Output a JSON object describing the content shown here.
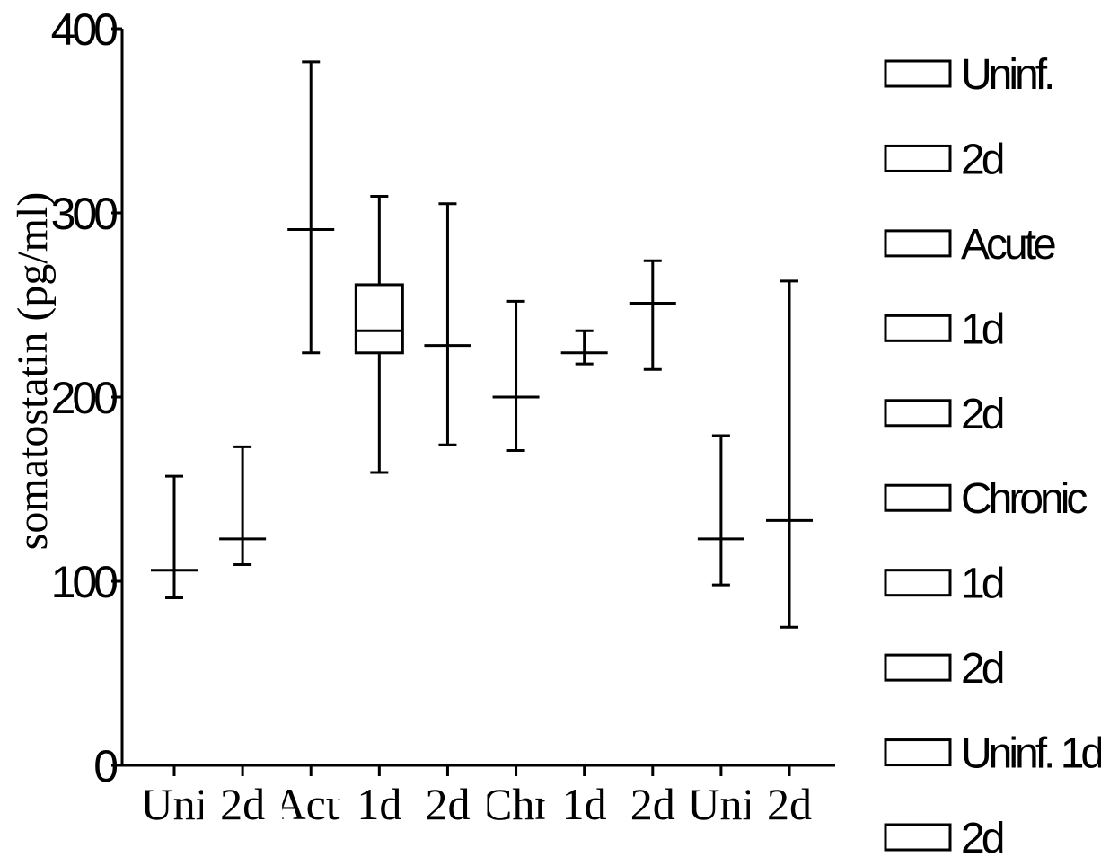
{
  "chart_data": {
    "type": "box",
    "ylabel": "somatostatin (pg/ml)",
    "ylim": [
      0,
      400
    ],
    "yticks": [
      0,
      100,
      200,
      300,
      400
    ],
    "categories": [
      "Uni",
      "2d",
      "Acu",
      "1d",
      "2d",
      "Chr",
      "1d",
      "2d",
      "Uni",
      "2d"
    ],
    "boxes": [
      {
        "min": 91,
        "q1": 106,
        "median": 106,
        "q3": 106,
        "max": 157
      },
      {
        "min": 109,
        "q1": 123,
        "median": 123,
        "q3": 123,
        "max": 173
      },
      {
        "min": 224,
        "q1": 291,
        "median": 291,
        "q3": 291,
        "max": 382
      },
      {
        "min": 159,
        "q1": 224,
        "median": 236,
        "q3": 261,
        "max": 309
      },
      {
        "min": 174,
        "q1": 228,
        "median": 228,
        "q3": 228,
        "max": 305
      },
      {
        "min": 171,
        "q1": 200,
        "median": 200,
        "q3": 200,
        "max": 252
      },
      {
        "min": 218,
        "q1": 224,
        "median": 224,
        "q3": 224,
        "max": 236
      },
      {
        "min": 215,
        "q1": 251,
        "median": 251,
        "q3": 251,
        "max": 274
      },
      {
        "min": 98,
        "q1": 123,
        "median": 123,
        "q3": 123,
        "max": 179
      },
      {
        "min": 75,
        "q1": 133,
        "median": 133,
        "q3": 133,
        "max": 263
      }
    ],
    "legend": {
      "position": "right",
      "entries": [
        "Uninf.",
        "2d",
        "Acute",
        "1d",
        "2d",
        "Chronic",
        "1d",
        "2d",
        "Uninf. 1d",
        "2d"
      ]
    },
    "grid": false
  }
}
